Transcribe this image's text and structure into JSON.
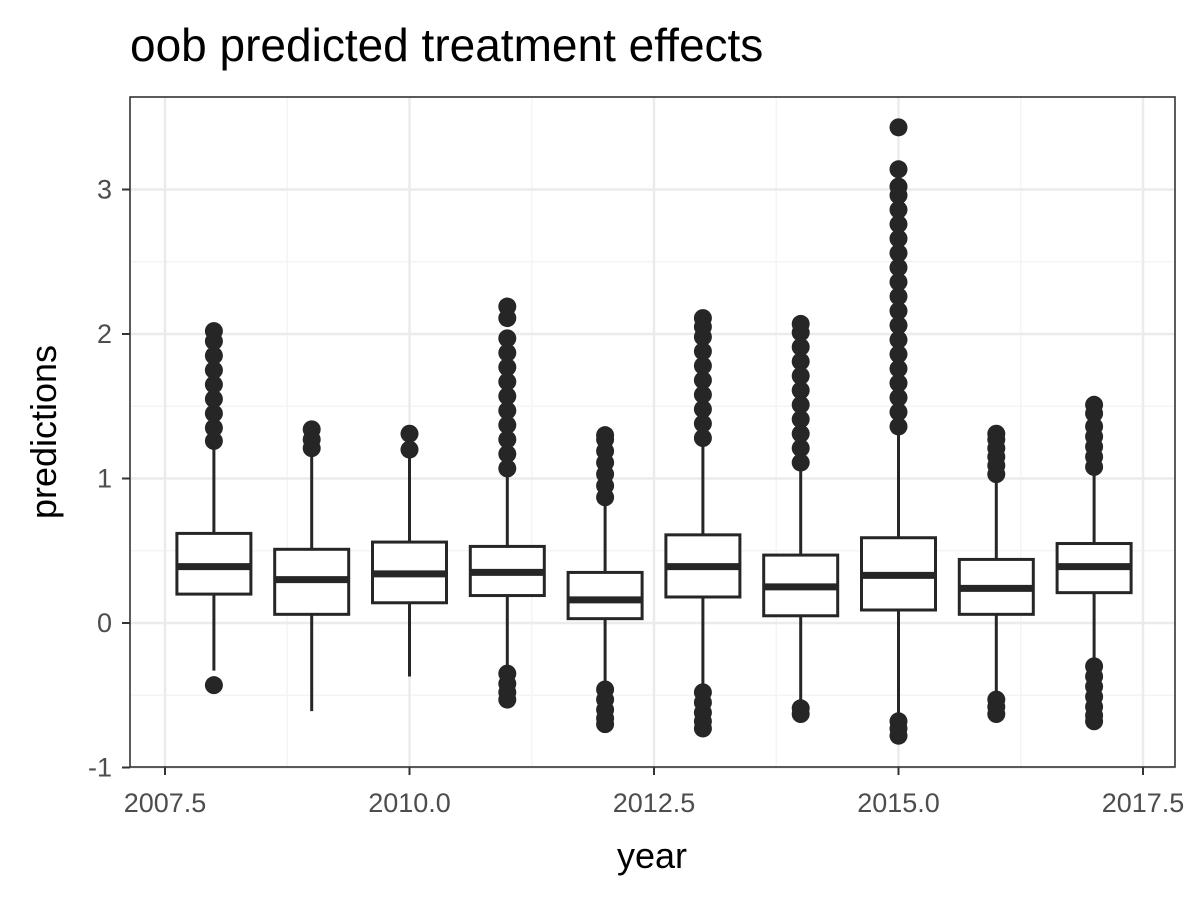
{
  "chart_data": {
    "type": "boxplot",
    "title": "oob predicted treatment effects",
    "xlabel": "year",
    "ylabel": "predictions",
    "xlim": [
      2007.3,
      2018.5
    ],
    "ylim": [
      -1,
      3.6
    ],
    "x_ticks": [
      2007.5,
      2010.0,
      2012.5,
      2015.0,
      2017.5
    ],
    "x_tick_labels": [
      "2007.5",
      "2010.0",
      "2012.5",
      "2015.0",
      "2017.5"
    ],
    "y_ticks": [
      -1,
      0,
      1,
      2,
      3
    ],
    "y_tick_labels": [
      "-1",
      "0",
      "1",
      "2",
      "3"
    ],
    "grid": true,
    "legend": "none",
    "colors": {
      "box_stroke": "#262626",
      "grid_major": "#ebebeb",
      "grid_minor": "#f4f4f4",
      "panel_border": "#333333"
    },
    "boxes": [
      {
        "year": 2008,
        "q1": 0.2,
        "median": 0.39,
        "q3": 0.62,
        "lower_whisker": -0.33,
        "upper_whisker": 1.22,
        "outliers_low": [
          -0.43
        ],
        "outliers_high": [
          1.26,
          1.35,
          1.45,
          1.55,
          1.65,
          1.75,
          1.85,
          1.95,
          2.02
        ]
      },
      {
        "year": 2009,
        "q1": 0.06,
        "median": 0.3,
        "q3": 0.51,
        "lower_whisker": -0.61,
        "upper_whisker": 1.18,
        "outliers_low": [],
        "outliers_high": [
          1.21,
          1.27,
          1.34
        ]
      },
      {
        "year": 2010,
        "q1": 0.14,
        "median": 0.34,
        "q3": 0.56,
        "lower_whisker": -0.37,
        "upper_whisker": 1.16,
        "outliers_low": [],
        "outliers_high": [
          1.2,
          1.31
        ]
      },
      {
        "year": 2011,
        "q1": 0.19,
        "median": 0.35,
        "q3": 0.53,
        "lower_whisker": -0.3,
        "upper_whisker": 1.03,
        "outliers_low": [
          -0.35,
          -0.42,
          -0.48,
          -0.53
        ],
        "outliers_high": [
          1.07,
          1.17,
          1.27,
          1.37,
          1.47,
          1.57,
          1.67,
          1.77,
          1.87,
          1.97,
          2.11,
          2.19
        ]
      },
      {
        "year": 2012,
        "q1": 0.03,
        "median": 0.16,
        "q3": 0.35,
        "lower_whisker": -0.42,
        "upper_whisker": 0.83,
        "outliers_low": [
          -0.46,
          -0.53,
          -0.6,
          -0.66,
          -0.7
        ],
        "outliers_high": [
          0.87,
          0.95,
          1.03,
          1.11,
          1.19,
          1.27,
          1.3
        ]
      },
      {
        "year": 2013,
        "q1": 0.18,
        "median": 0.39,
        "q3": 0.61,
        "lower_whisker": -0.44,
        "upper_whisker": 1.24,
        "outliers_low": [
          -0.48,
          -0.55,
          -0.62,
          -0.68,
          -0.73
        ],
        "outliers_high": [
          1.28,
          1.38,
          1.48,
          1.58,
          1.68,
          1.78,
          1.88,
          1.98,
          2.05,
          2.11
        ]
      },
      {
        "year": 2014,
        "q1": 0.05,
        "median": 0.25,
        "q3": 0.47,
        "lower_whisker": -0.57,
        "upper_whisker": 1.07,
        "outliers_low": [
          -0.59,
          -0.63
        ],
        "outliers_high": [
          1.11,
          1.21,
          1.31,
          1.41,
          1.51,
          1.61,
          1.71,
          1.81,
          1.91,
          2.01,
          2.07
        ]
      },
      {
        "year": 2015,
        "q1": 0.09,
        "median": 0.33,
        "q3": 0.59,
        "lower_whisker": -0.65,
        "upper_whisker": 1.32,
        "outliers_low": [
          -0.68,
          -0.73,
          -0.78
        ],
        "outliers_high": [
          1.36,
          1.46,
          1.56,
          1.66,
          1.76,
          1.86,
          1.96,
          2.06,
          2.16,
          2.26,
          2.36,
          2.46,
          2.56,
          2.66,
          2.76,
          2.86,
          2.96,
          3.02,
          3.14,
          3.43
        ]
      },
      {
        "year": 2016,
        "q1": 0.06,
        "median": 0.24,
        "q3": 0.44,
        "lower_whisker": -0.5,
        "upper_whisker": 0.99,
        "outliers_low": [
          -0.53,
          -0.58,
          -0.63
        ],
        "outliers_high": [
          1.03,
          1.09,
          1.15,
          1.21,
          1.27,
          1.31
        ]
      },
      {
        "year": 2017,
        "q1": 0.21,
        "median": 0.39,
        "q3": 0.55,
        "lower_whisker": -0.26,
        "upper_whisker": 1.04,
        "outliers_low": [
          -0.3,
          -0.37,
          -0.44,
          -0.51,
          -0.58,
          -0.64,
          -0.68
        ],
        "outliers_high": [
          1.08,
          1.15,
          1.22,
          1.29,
          1.36,
          1.45,
          1.51
        ]
      }
    ]
  }
}
